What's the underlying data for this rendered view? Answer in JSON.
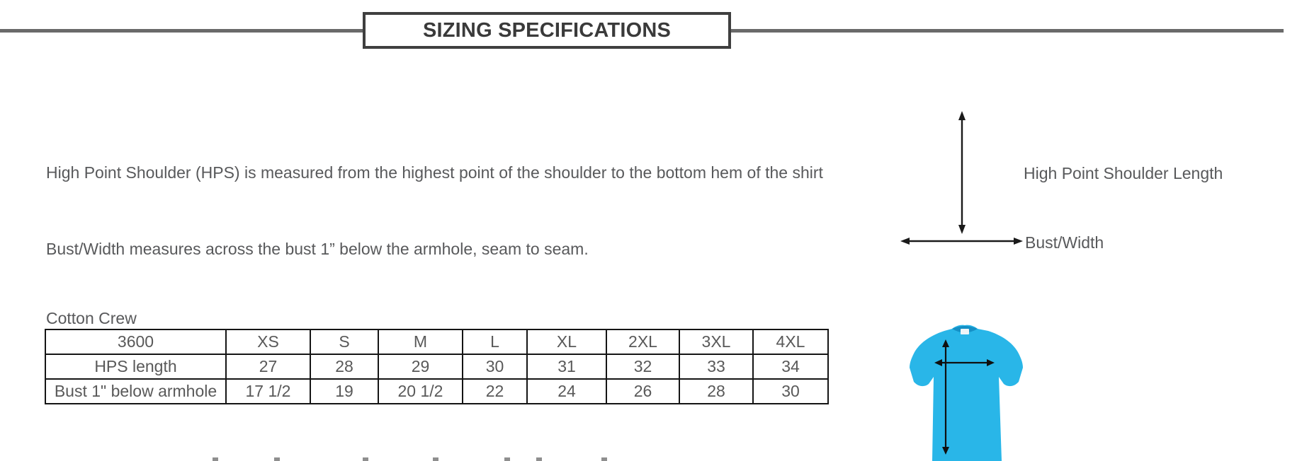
{
  "header": {
    "title": "SIZING SPECIFICATIONS"
  },
  "intro": {
    "hps_text": "High Point Shoulder (HPS) is measured from the highest point of the shoulder to the bottom hem of the shirt",
    "bust_text": "Bust/Width measures across the bust 1” below the armhole, seam to seam."
  },
  "diagram": {
    "vertical_label": "High Point Shoulder Length",
    "horizontal_label": "Bust/Width",
    "arrow_color": "#1a1a1a"
  },
  "table_section": {
    "label": "Cotton Crew",
    "table": {
      "header": [
        "3600",
        "XS",
        "S",
        "M",
        "L",
        "XL",
        "2XL",
        "3XL",
        "4XL"
      ],
      "rows": [
        {
          "label": "HPS length",
          "values": [
            "27",
            "28",
            "29",
            "30",
            "31",
            "32",
            "33",
            "34"
          ]
        },
        {
          "label": "Bust 1\" below armhole",
          "values": [
            "17 1/2",
            "19",
            "20 1/2",
            "22",
            "24",
            "26",
            "28",
            "30"
          ]
        }
      ]
    }
  },
  "shirt": {
    "body_color": "#29b6e8",
    "collar_color": "#1590c6",
    "tag_color": "#eef4f7",
    "arrow_color": "#101010"
  },
  "rule_color": "#6a6a6a",
  "cutoff_line": {
    "marks_x": [
      300,
      387,
      512,
      611,
      712,
      757,
      849
    ]
  }
}
